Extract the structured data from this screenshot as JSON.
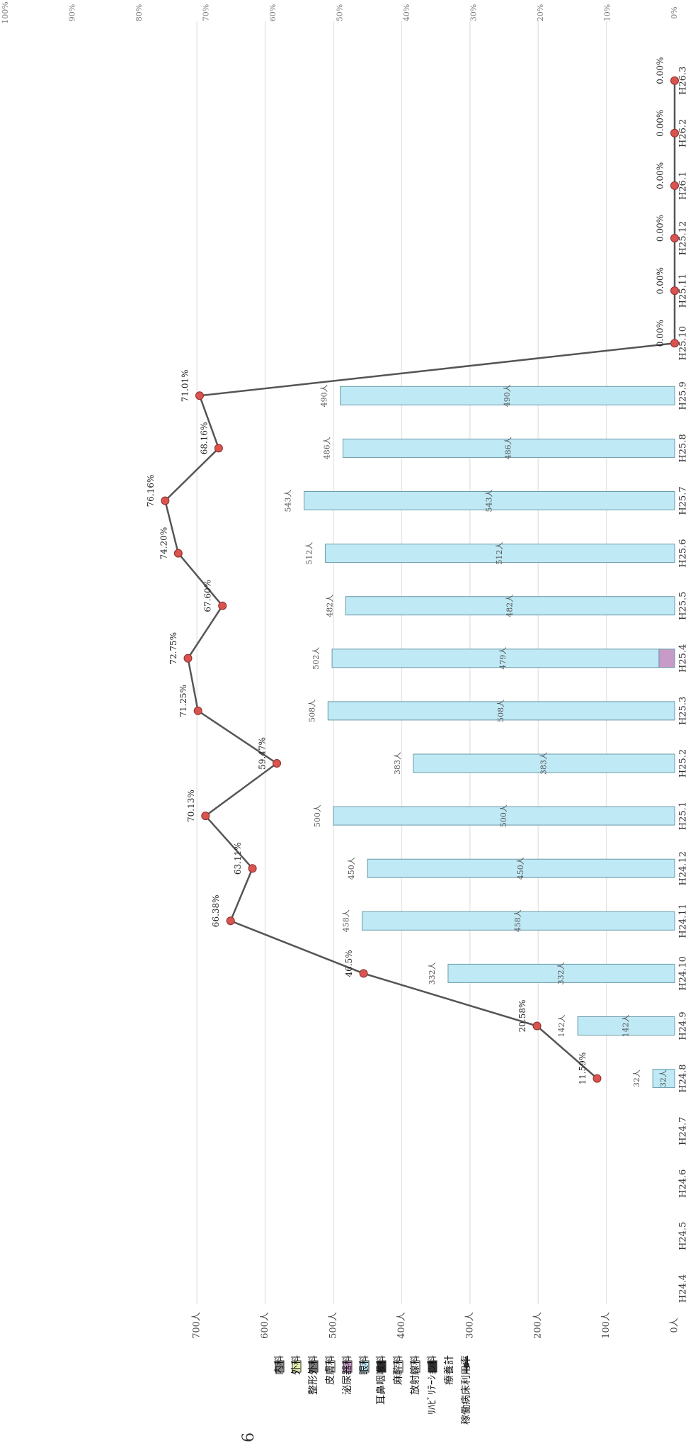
{
  "chart_data": {
    "type": "bar",
    "categories": [
      "H24.4",
      "H24.5",
      "H24.6",
      "H24.7",
      "H24.8",
      "H24.9",
      "H24.10",
      "H24.11",
      "H24.12",
      "H25.1",
      "H25.2",
      "H25.3",
      "H25.4",
      "H25.5",
      "H25.6",
      "H25.7",
      "H25.8",
      "H25.9",
      "H25.10",
      "H25.11",
      "H25.12",
      "H26.1",
      "H26.2",
      "H26.3"
    ],
    "series": [
      {
        "name": "内科",
        "color": "#8a8a8a",
        "values": [
          0,
          0,
          0,
          0,
          0,
          0,
          0,
          0,
          0,
          0,
          0,
          0,
          0,
          0,
          0,
          0,
          0,
          0,
          0,
          0,
          0,
          0,
          0,
          0
        ]
      },
      {
        "name": "外科",
        "color": "#e8f0b0",
        "values": [
          0,
          0,
          0,
          0,
          0,
          0,
          0,
          0,
          0,
          0,
          0,
          0,
          0,
          0,
          0,
          0,
          0,
          0,
          0,
          0,
          0,
          0,
          0,
          0
        ]
      },
      {
        "name": "整形外科",
        "color": "#777777",
        "values": [
          0,
          0,
          0,
          0,
          0,
          0,
          0,
          0,
          0,
          0,
          0,
          0,
          0,
          0,
          0,
          0,
          0,
          0,
          0,
          0,
          0,
          0,
          0,
          0
        ]
      },
      {
        "name": "皮膚科",
        "color": "#ffffff",
        "values": [
          0,
          0,
          0,
          0,
          0,
          0,
          0,
          0,
          0,
          0,
          0,
          0,
          0,
          0,
          0,
          0,
          0,
          0,
          0,
          0,
          0,
          0,
          0,
          0
        ]
      },
      {
        "name": "泌尿器科",
        "color": "#c89ac8",
        "values": [
          0,
          0,
          0,
          0,
          0,
          0,
          0,
          0,
          0,
          0,
          0,
          0,
          23,
          0,
          0,
          0,
          0,
          0,
          0,
          0,
          0,
          0,
          0,
          0
        ]
      },
      {
        "name": "眼科",
        "color": "#bfe9f5",
        "values": [
          0,
          0,
          0,
          0,
          32,
          142,
          332,
          458,
          450,
          500,
          383,
          508,
          479,
          482,
          512,
          543,
          486,
          490,
          0,
          0,
          0,
          0,
          0,
          0
        ]
      },
      {
        "name": "耳鼻咽喉科",
        "color": "#333333",
        "values": [
          0,
          0,
          0,
          0,
          0,
          0,
          0,
          0,
          0,
          0,
          0,
          0,
          0,
          0,
          0,
          0,
          0,
          0,
          0,
          0,
          0,
          0,
          0,
          0
        ]
      },
      {
        "name": "麻酔科",
        "color": "#ffffff",
        "values": [
          0,
          0,
          0,
          0,
          0,
          0,
          0,
          0,
          0,
          0,
          0,
          0,
          0,
          0,
          0,
          0,
          0,
          0,
          0,
          0,
          0,
          0,
          0,
          0
        ]
      },
      {
        "name": "放射線科",
        "color": "#ffffff",
        "values": [
          0,
          0,
          0,
          0,
          0,
          0,
          0,
          0,
          0,
          0,
          0,
          0,
          0,
          0,
          0,
          0,
          0,
          0,
          0,
          0,
          0,
          0,
          0,
          0
        ]
      },
      {
        "name": "ﾘﾊﾋﾞﾘﾃｰｼｮﾝ科",
        "color": "#333333",
        "values": [
          0,
          0,
          0,
          0,
          0,
          0,
          0,
          0,
          0,
          0,
          0,
          0,
          0,
          0,
          0,
          0,
          0,
          0,
          0,
          0,
          0,
          0,
          0,
          0
        ]
      }
    ],
    "value_labels": [
      "",
      "",
      "",
      "",
      "32人",
      "142人",
      "332人",
      "458人",
      "450人",
      "500人",
      "383人",
      "508人",
      "479人",
      "482人",
      "512人",
      "543人",
      "486人",
      "490人",
      "",
      "",
      "",
      "",
      "",
      ""
    ],
    "bar_total_labels": [
      "",
      "",
      "",
      "",
      "32人",
      "142人",
      "332人",
      "458人",
      "450人",
      "500人",
      "383人",
      "508人",
      "502人",
      "482人",
      "512人",
      "543人",
      "486人",
      "490人",
      "",
      "",
      "",
      "",
      "",
      ""
    ],
    "rate": {
      "name": "稼働病床利用率",
      "color": "#555555",
      "marker_color": "#d9534f",
      "values": [
        null,
        null,
        null,
        null,
        11.59,
        20.58,
        46.5,
        66.38,
        63.11,
        70.13,
        59.47,
        71.25,
        72.75,
        67.6,
        74.2,
        76.16,
        68.16,
        71.01,
        0,
        0,
        0,
        0,
        0,
        0
      ],
      "labels": [
        "",
        "",
        "",
        "",
        "11.59%",
        "20.58%",
        "46.5%",
        "66.38%",
        "63.11%",
        "70.13%",
        "59.47%",
        "71.25%",
        "72.75%",
        "67.60%",
        "74.20%",
        "76.16%",
        "68.16%",
        "71.01%",
        "0.00%",
        "0.00%",
        "0.00%",
        "0.00%",
        "0.00%",
        "0.00%"
      ]
    },
    "extra_legend": "療養計",
    "left_axis_ticks": [
      "0人",
      "100人",
      "200人",
      "300人",
      "400人",
      "500人",
      "600人",
      "700人"
    ],
    "right_axis_ticks": [
      "0%",
      "10%",
      "20%",
      "30%",
      "40%",
      "50%",
      "60%",
      "70%",
      "80%",
      "90%",
      "100%"
    ],
    "ylim_left": [
      0,
      700
    ],
    "ylim_right": [
      0,
      100
    ],
    "orientation": "rotated-90",
    "legend_position": "bottom-left",
    "grid": true,
    "page_number": "6"
  }
}
